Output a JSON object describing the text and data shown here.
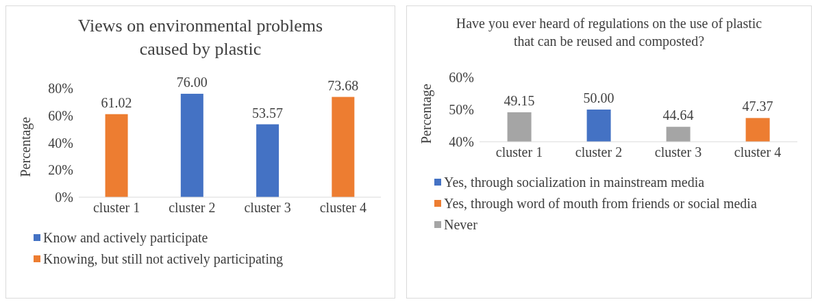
{
  "chart_data": [
    {
      "type": "bar",
      "title": "Views on environmental problems caused by plastic",
      "ylabel": "Percentage",
      "categories": [
        "cluster 1",
        "cluster 2",
        "cluster 3",
        "cluster 4"
      ],
      "stacked": true,
      "ylim": [
        0,
        80
      ],
      "yticks": [
        {
          "value": 0,
          "label": "0%"
        },
        {
          "value": 20,
          "label": "20%"
        },
        {
          "value": 40,
          "label": "40%"
        },
        {
          "value": 60,
          "label": "60%"
        },
        {
          "value": 80,
          "label": "80%"
        }
      ],
      "legend": "bottom",
      "series": [
        {
          "name": "Know and actively participate",
          "color": "#4472c4",
          "values": [
            null,
            76.0,
            53.57,
            null
          ],
          "value_labels": [
            null,
            "76.00",
            "53.57",
            null
          ]
        },
        {
          "name": "Knowing, but still not actively participating",
          "color": "#ed7d31",
          "values": [
            61.02,
            null,
            null,
            73.68
          ],
          "value_labels": [
            "61.02",
            null,
            null,
            "73.68"
          ]
        }
      ]
    },
    {
      "type": "bar",
      "title": "Have you ever heard of regulations on the use of plastic that can be reused and composted?",
      "ylabel": "Percentage",
      "categories": [
        "cluster 1",
        "cluster 2",
        "cluster 3",
        "cluster 4"
      ],
      "stacked": true,
      "ylim": [
        40,
        60
      ],
      "yticks": [
        {
          "value": 40,
          "label": "40%"
        },
        {
          "value": 50,
          "label": "50%"
        },
        {
          "value": 60,
          "label": "60%"
        }
      ],
      "legend": "bottom",
      "series": [
        {
          "name": "Yes, through socialization in mainstream media",
          "color": "#4472c4",
          "values": [
            null,
            50.0,
            null,
            null
          ],
          "value_labels": [
            null,
            "50.00",
            null,
            null
          ]
        },
        {
          "name": "Yes, through word of mouth from friends or social media",
          "color": "#ed7d31",
          "values": [
            null,
            null,
            null,
            47.37
          ],
          "value_labels": [
            null,
            null,
            null,
            "47.37"
          ]
        },
        {
          "name": "Never",
          "color": "#a5a5a5",
          "values": [
            49.15,
            null,
            44.64,
            null
          ],
          "value_labels": [
            "49.15",
            null,
            "44.64",
            null
          ]
        }
      ]
    }
  ]
}
